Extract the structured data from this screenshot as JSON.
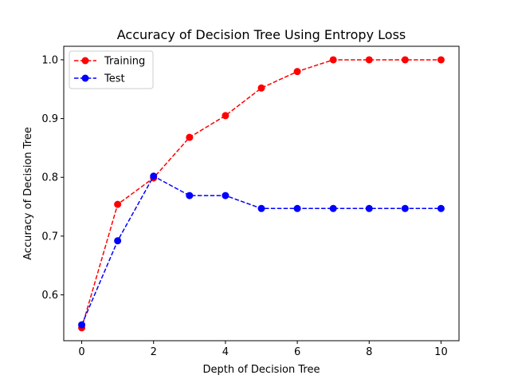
{
  "chart_data": {
    "type": "line",
    "title": "Accuracy of Decision Tree Using Entropy Loss",
    "xlabel": "Depth of Decision Tree",
    "ylabel": "Accuracy of Decision Tree",
    "x": [
      0,
      1,
      2,
      3,
      4,
      5,
      6,
      7,
      8,
      9,
      10
    ],
    "xlim": [
      -0.5,
      10.5
    ],
    "ylim": [
      0.522,
      1.023
    ],
    "xticks": [
      0,
      2,
      4,
      6,
      8,
      10
    ],
    "yticks": [
      0.6,
      0.7,
      0.8,
      0.9,
      1.0
    ],
    "xtick_labels": [
      "0",
      "2",
      "4",
      "6",
      "8",
      "10"
    ],
    "ytick_labels": [
      "0.6",
      "0.7",
      "0.8",
      "0.9",
      "1.0"
    ],
    "grid": false,
    "legend_position": "upper-left",
    "series": [
      {
        "name": "Training",
        "color": "#ff0000",
        "line_style": "dashed",
        "marker": "circle",
        "values": [
          0.544,
          0.754,
          0.799,
          0.868,
          0.905,
          0.952,
          0.98,
          1.0,
          1.0,
          1.0,
          1.0
        ]
      },
      {
        "name": "Test",
        "color": "#0000ff",
        "line_style": "dashed",
        "marker": "circle",
        "values": [
          0.549,
          0.692,
          0.802,
          0.769,
          0.769,
          0.747,
          0.747,
          0.747,
          0.747,
          0.747,
          0.747
        ]
      }
    ]
  }
}
